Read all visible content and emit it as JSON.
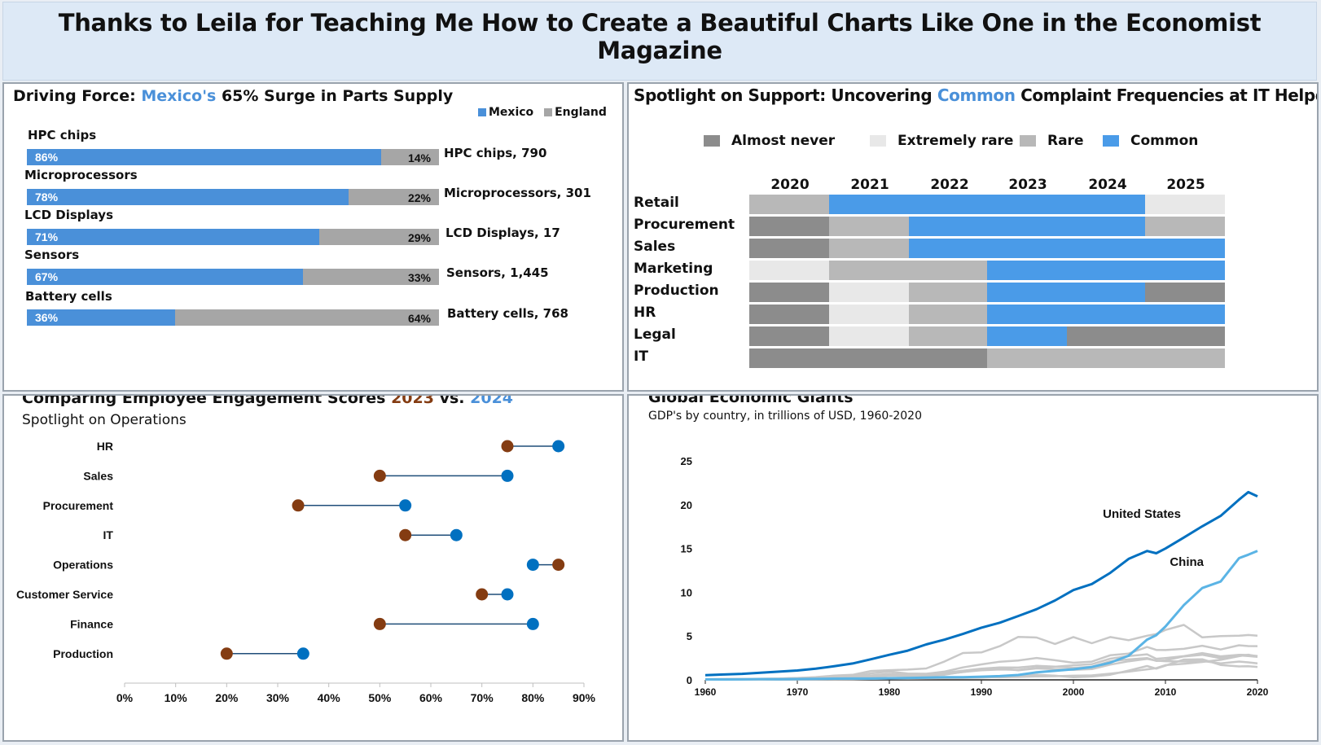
{
  "page_title": "Thanks to Leila for Teaching Me How to Create a Beautiful Charts Like One in the Economist Magazine",
  "colors": {
    "blue": "#4a90d9",
    "dark_blue": "#0070c0",
    "brown": "#843c12",
    "grey": "#a6a6a6"
  },
  "panel1": {
    "title_pre": "Driving Force:",
    "title_highlight": "Mexico's",
    "title_post": "65% Surge in Parts Supply"
  },
  "panel2": {
    "title_pre": "Spotlight on Support: Uncovering",
    "title_highlight": "Common",
    "title_post": "Complaint Frequencies at IT Helpdesk"
  },
  "panel3": {
    "title_pre": "Comparing Employee Engagement Scores",
    "year_a": "2023",
    "vs": "vs.",
    "year_b": "2024",
    "subtitle": "Spotlight on Operations"
  },
  "panel4": {
    "title": "Global Economic Giants",
    "subtitle": "GDP's by country, in trillions of USD, 1960-2020"
  },
  "chart_data": [
    {
      "type": "bar",
      "orientation": "horizontal-stacked-100",
      "legend": [
        "Mexico",
        "England"
      ],
      "legend_position": "top-right",
      "categories": [
        "HPC chips",
        "Microprocessors",
        "LCD Displays",
        "Sensors",
        "Battery cells"
      ],
      "series": [
        {
          "name": "Mexico",
          "values": [
            86,
            78,
            71,
            67,
            36
          ],
          "labels": [
            "86%",
            "78%",
            "71%",
            "67%",
            "36%"
          ],
          "color": "#4a90d9"
        },
        {
          "name": "England",
          "values": [
            14,
            22,
            29,
            33,
            64
          ],
          "labels": [
            "14%",
            "22%",
            "29%",
            "33%",
            "64%"
          ],
          "color": "#a6a6a6"
        }
      ],
      "annotations": [
        "HPC chips, 790",
        "Microprocessors, 301",
        "LCD Displays, 17",
        "Sensors,  1,445",
        "Battery cells, 768"
      ]
    },
    {
      "type": "heatmap",
      "legend": [
        {
          "name": "Almost never",
          "color": "#8c8c8c"
        },
        {
          "name": "Extremely rare",
          "color": "#e8e8e8"
        },
        {
          "name": "Rare",
          "color": "#b8b8b8"
        },
        {
          "name": "Common",
          "color": "#4a9be8"
        }
      ],
      "columns": [
        "2020",
        "2021",
        "2022",
        "2023",
        "2024",
        "2025"
      ],
      "rows": [
        "Retail",
        "Procurement",
        "Sales",
        "Marketing",
        "Production",
        "HR",
        "Legal",
        "IT"
      ],
      "values": [
        [
          "Rare",
          "Common",
          "Common",
          "Common",
          "Common",
          "Extremely rare"
        ],
        [
          "Almost never",
          "Rare",
          "Common",
          "Common",
          "Common",
          "Rare"
        ],
        [
          "Almost never",
          "Rare",
          "Common",
          "Common",
          "Common",
          "Common"
        ],
        [
          "Extremely rare",
          "Rare",
          "Rare",
          "Common",
          "Common",
          "Common"
        ],
        [
          "Almost never",
          "Extremely rare",
          "Rare",
          "Common",
          "Common",
          "Almost never"
        ],
        [
          "Almost never",
          "Extremely rare",
          "Rare",
          "Common",
          "Common",
          "Common"
        ],
        [
          "Almost never",
          "Extremely rare",
          "Rare",
          "Common",
          "Almost never",
          "Almost never"
        ],
        [
          "Almost never",
          "Almost never",
          "Almost never",
          "Rare",
          "Rare",
          "Rare"
        ]
      ]
    },
    {
      "type": "scatter",
      "style": "dumbbell",
      "categories": [
        "HR",
        "Sales",
        "Procurement",
        "IT",
        "Operations",
        "Customer Service",
        "Finance",
        "Production"
      ],
      "series": [
        {
          "name": "2023",
          "values": [
            75,
            50,
            34,
            55,
            85,
            70,
            50,
            20
          ],
          "color": "#843c12"
        },
        {
          "name": "2024",
          "values": [
            85,
            75,
            55,
            65,
            80,
            75,
            80,
            35
          ],
          "color": "#0070c0"
        }
      ],
      "xlim": [
        0,
        90
      ],
      "xticks": [
        "0%",
        "10%",
        "20%",
        "30%",
        "40%",
        "50%",
        "60%",
        "70%",
        "80%",
        "90%"
      ]
    },
    {
      "type": "line",
      "x": [
        1960,
        1962,
        1964,
        1966,
        1968,
        1970,
        1972,
        1974,
        1976,
        1978,
        1980,
        1982,
        1984,
        1986,
        1988,
        1990,
        1992,
        1994,
        1996,
        1998,
        2000,
        2002,
        2004,
        2006,
        2008,
        2009,
        2010,
        2012,
        2014,
        2016,
        2018,
        2019,
        2020
      ],
      "xticks": [
        "1960",
        "1970",
        "1980",
        "1990",
        "2000",
        "2010",
        "2020"
      ],
      "yticks": [
        "0",
        "5",
        "10",
        "15",
        "20",
        "25"
      ],
      "ylim": [
        0,
        25
      ],
      "series": [
        {
          "name": "United States",
          "color": "#0070c0",
          "values": [
            0.54,
            0.61,
            0.69,
            0.82,
            0.94,
            1.07,
            1.28,
            1.55,
            1.87,
            2.35,
            2.86,
            3.34,
            4.04,
            4.59,
            5.24,
            5.96,
            6.52,
            7.29,
            8.07,
            9.06,
            10.25,
            10.94,
            12.21,
            13.81,
            14.71,
            14.45,
            14.99,
            16.25,
            17.53,
            18.72,
            20.58,
            21.43,
            20.95
          ]
        },
        {
          "name": "China",
          "color": "#5bb4e5",
          "values": [
            0.06,
            0.05,
            0.06,
            0.08,
            0.07,
            0.09,
            0.11,
            0.14,
            0.15,
            0.15,
            0.19,
            0.21,
            0.26,
            0.3,
            0.31,
            0.36,
            0.43,
            0.56,
            0.86,
            1.03,
            1.21,
            1.47,
            1.96,
            2.75,
            4.59,
            5.1,
            6.09,
            8.53,
            10.48,
            11.23,
            13.89,
            14.28,
            14.72
          ]
        },
        {
          "name": "",
          "color": "#c8c8c8",
          "values": [
            0.04,
            0.06,
            0.08,
            0.12,
            0.15,
            0.21,
            0.32,
            0.48,
            0.58,
            1.01,
            1.11,
            1.17,
            1.3,
            2.1,
            3.07,
            3.13,
            3.85,
            4.91,
            4.83,
            4.1,
            4.89,
            4.18,
            4.89,
            4.53,
            5.04,
            5.23,
            5.7,
            6.27,
            4.85,
            5.0,
            5.04,
            5.12,
            5.04
          ]
        },
        {
          "name": "",
          "color": "#c8c8c8",
          "values": [
            0.07,
            0.09,
            0.1,
            0.13,
            0.15,
            0.21,
            0.27,
            0.4,
            0.45,
            0.74,
            0.95,
            0.72,
            0.7,
            0.94,
            1.42,
            1.77,
            2.07,
            2.21,
            2.5,
            2.24,
            1.95,
            2.08,
            2.81,
            3.0,
            3.75,
            3.42,
            3.4,
            3.54,
            3.89,
            3.47,
            3.95,
            3.86,
            3.85
          ]
        },
        {
          "name": "",
          "color": "#c8c8c8",
          "values": [
            0.07,
            0.08,
            0.1,
            0.11,
            0.11,
            0.13,
            0.17,
            0.21,
            0.24,
            0.34,
            0.56,
            0.51,
            0.47,
            0.59,
            0.91,
            1.09,
            1.18,
            1.14,
            1.38,
            1.5,
            1.66,
            1.78,
            2.42,
            2.71,
            2.92,
            2.41,
            2.49,
            2.7,
            3.06,
            2.69,
            2.86,
            2.83,
            2.71
          ]
        },
        {
          "name": "",
          "color": "#c8c8c8",
          "values": [
            0.04,
            0.05,
            0.06,
            0.07,
            0.08,
            0.06,
            0.07,
            0.1,
            0.1,
            0.14,
            0.19,
            0.2,
            0.21,
            0.25,
            0.3,
            0.32,
            0.29,
            0.33,
            0.4,
            0.42,
            0.47,
            0.51,
            0.71,
            0.94,
            1.2,
            1.34,
            1.68,
            1.83,
            2.04,
            2.29,
            2.7,
            2.87,
            2.66
          ]
        },
        {
          "name": "",
          "color": "#c8c8c8",
          "values": [
            0.06,
            0.08,
            0.09,
            0.11,
            0.12,
            0.15,
            0.2,
            0.27,
            0.37,
            0.5,
            0.7,
            0.56,
            0.54,
            0.8,
            1.05,
            1.27,
            1.41,
            1.4,
            1.6,
            1.51,
            1.37,
            1.5,
            2.12,
            2.33,
            2.49,
            2.17,
            2.23,
            2.68,
            2.86,
            2.47,
            2.79,
            2.72,
            2.63
          ]
        },
        {
          "name": "",
          "color": "#c8c8c8",
          "values": [
            0.04,
            0.05,
            0.06,
            0.07,
            0.08,
            0.11,
            0.14,
            0.2,
            0.23,
            0.32,
            0.47,
            0.44,
            0.44,
            0.64,
            0.89,
            1.18,
            1.32,
            1.1,
            1.31,
            1.22,
            1.14,
            1.23,
            1.74,
            2.12,
            2.4,
            2.19,
            2.13,
            2.09,
            2.16,
            1.88,
            2.09,
            2.0,
            1.89
          ]
        },
        {
          "name": "",
          "color": "#c8c8c8",
          "values": [
            0.02,
            0.02,
            0.03,
            0.03,
            0.04,
            0.04,
            0.05,
            0.07,
            0.08,
            0.12,
            0.15,
            0.14,
            0.16,
            0.2,
            0.22,
            0.26,
            0.33,
            0.43,
            0.58,
            0.47,
            0.31,
            0.38,
            0.59,
            1.06,
            1.58,
            1.28,
            1.63,
            2.31,
            2.35,
            1.7,
            1.53,
            1.56,
            1.48
          ]
        }
      ],
      "annotations": [
        "United States",
        "China"
      ]
    }
  ]
}
